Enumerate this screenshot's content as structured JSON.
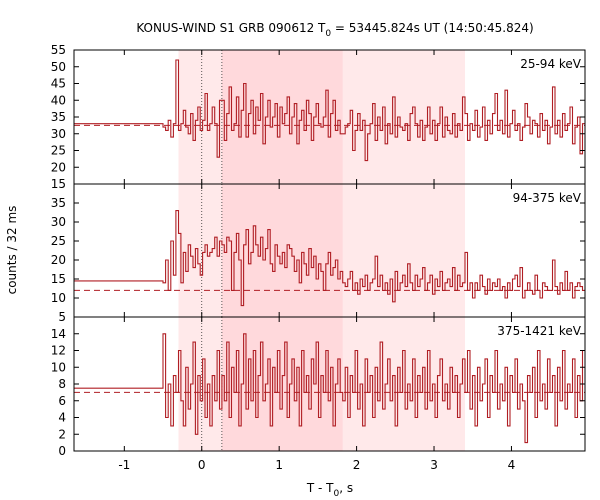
{
  "chart_data": {
    "type": "line",
    "title_prefix": "KONUS-WIND S1 GRB 090612 T",
    "title_sub": "0",
    "title_suffix": " = 53445.824s UT (14:50:45.824)",
    "xlabel_prefix": "T - T",
    "xlabel_sub": "0",
    "xlabel_suffix": ", s",
    "ylabel": "counts / 32 ms",
    "xlim": [
      -1.65,
      4.95
    ],
    "x_ticks": [
      -1,
      0,
      1,
      2,
      3,
      4
    ],
    "x_tick_labels": [
      "-1",
      "0",
      "1",
      "2",
      "3",
      "4"
    ],
    "bin_width": 0.032,
    "pre_trigger_end": -0.5,
    "shaded_intervals": [
      {
        "start": -0.3,
        "end": 3.4,
        "color": "#ffe9ea"
      },
      {
        "start": 0.26,
        "end": 1.82,
        "color": "#ffd9dc"
      }
    ],
    "dotted_lines": [
      0,
      0.26
    ],
    "line_color": "#b01e24",
    "panels": [
      {
        "band": "25-94 keV",
        "ylim": [
          15,
          55
        ],
        "y_ticks": [
          15,
          20,
          25,
          30,
          35,
          40,
          45,
          50,
          55
        ],
        "background": 32.5,
        "pre_level": 33,
        "series": [
          {
            "from": -0.5,
            "to": -0.3,
            "values": [
              32,
              31,
              34,
              29,
              33,
              52
            ]
          },
          {
            "from": -0.3,
            "to": 0.26,
            "values": [
              31,
              33,
              37,
              32,
              30,
              36,
              28,
              34,
              38,
              31,
              34,
              42,
              31,
              33,
              38,
              33,
              23,
              40
            ]
          },
          {
            "from": 0.26,
            "to": 1.82,
            "values": [
              40,
              28,
              36,
              44,
              31,
              33,
              41,
              29,
              37,
              45,
              29,
              36,
              40,
              30,
              38,
              34,
              42,
              27,
              35,
              40,
              32,
              35,
              39,
              29,
              38,
              33,
              36,
              41,
              30,
              35,
              39,
              27,
              34,
              37,
              31,
              40,
              36,
              28,
              35,
              39,
              33,
              32,
              35,
              43,
              29,
              36,
              40,
              31,
              34,
              30
            ]
          },
          {
            "from": 1.82,
            "to": 3.4,
            "values": [
              30,
              32,
              33,
              37,
              25,
              31,
              36,
              31,
              34,
              22,
              30,
              33,
              39,
              28,
              35,
              31,
              38,
              27,
              33,
              30,
              41,
              29,
              35,
              32,
              31,
              33,
              28,
              36,
              38,
              33,
              29,
              34,
              28,
              32,
              38,
              30,
              34,
              28,
              33,
              38,
              29,
              35,
              31,
              30,
              36,
              29,
              33,
              31,
              41
            ]
          },
          {
            "from": 3.4,
            "to": 4.95,
            "values": [
              36,
              28,
              33,
              31,
              37,
              29,
              32,
              38,
              28,
              34,
              30,
              36,
              42,
              31,
              34,
              30,
              43,
              29,
              33,
              37,
              31,
              33,
              28,
              32,
              39,
              35,
              30,
              34,
              33,
              29,
              36,
              31,
              34,
              27,
              32,
              44,
              30,
              34,
              29,
              36,
              31,
              33,
              38,
              27,
              32,
              35,
              24,
              33
            ]
          }
        ]
      },
      {
        "band": "94-375 keV",
        "ylim": [
          5,
          40
        ],
        "y_ticks": [
          5,
          10,
          15,
          20,
          25,
          30,
          35
        ],
        "background": 12,
        "pre_level": 14.5,
        "series": [
          {
            "from": -0.5,
            "to": -0.3,
            "values": [
              14,
              20,
              12,
              25,
              16,
              33
            ]
          },
          {
            "from": -0.3,
            "to": 0.26,
            "values": [
              27,
              14,
              22,
              17,
              24,
              21,
              18,
              23,
              19,
              16,
              22,
              24,
              21,
              22,
              23,
              26,
              21,
              25
            ]
          },
          {
            "from": 0.26,
            "to": 1.82,
            "values": [
              24,
              22,
              26,
              25,
              12,
              22,
              27,
              20,
              8,
              24,
              28,
              19,
              22,
              29,
              24,
              21,
              26,
              20,
              23,
              28,
              19,
              17,
              24,
              21,
              19,
              22,
              18,
              24,
              23,
              21,
              17,
              20,
              14,
              22,
              19,
              16,
              23,
              18,
              21,
              15,
              19,
              17,
              12,
              19,
              22,
              16,
              18,
              20,
              15,
              17
            ]
          },
          {
            "from": 1.82,
            "to": 3.4,
            "values": [
              14,
              13,
              15,
              17,
              12,
              14,
              11,
              15,
              13,
              16,
              12,
              14,
              15,
              21,
              13,
              16,
              12,
              14,
              11,
              15,
              9,
              17,
              12,
              14,
              16,
              13,
              19,
              14,
              12,
              16,
              13,
              15,
              18,
              12,
              14,
              16,
              11,
              15,
              13,
              17,
              12,
              14,
              15,
              13,
              18,
              12,
              16,
              13,
              14
            ]
          },
          {
            "from": 3.4,
            "to": 4.95,
            "values": [
              22,
              12,
              14,
              10,
              14,
              12,
              16,
              13,
              11,
              15,
              12,
              14,
              13,
              15,
              12,
              13,
              10,
              14,
              12,
              15,
              16,
              13,
              18,
              10,
              12,
              14,
              12,
              11,
              16,
              12,
              10,
              14,
              13,
              12,
              12,
              20,
              13,
              11,
              14,
              12,
              17,
              12,
              14,
              10,
              13,
              14,
              13,
              12
            ]
          }
        ]
      },
      {
        "band": "375-1421 keV",
        "ylim": [
          0,
          16
        ],
        "y_ticks": [
          0,
          2,
          4,
          6,
          8,
          10,
          12,
          14
        ],
        "background": 7,
        "pre_level": 7.5,
        "series": [
          {
            "from": -0.5,
            "to": -0.3,
            "values": [
              14,
              4,
              8,
              3,
              9,
              7
            ]
          },
          {
            "from": -0.3,
            "to": 0.26,
            "values": [
              12,
              6,
              3,
              10,
              5,
              8,
              13,
              2,
              9,
              6,
              11,
              4,
              8,
              3,
              9,
              6,
              12,
              5
            ]
          },
          {
            "from": 0.26,
            "to": 1.82,
            "values": [
              9,
              6,
              13,
              4,
              10,
              7,
              12,
              3,
              8,
              14,
              5,
              11,
              6,
              12,
              4,
              9,
              13,
              6,
              8,
              11,
              3,
              10,
              7,
              12,
              5,
              9,
              13,
              4,
              8,
              11,
              6,
              10,
              3,
              12,
              7,
              9,
              5,
              11,
              8,
              13,
              4,
              9,
              7,
              12,
              6,
              10,
              3,
              8,
              11,
              7
            ]
          },
          {
            "from": 1.82,
            "to": 3.4,
            "values": [
              6,
              10,
              4,
              9,
              7,
              12,
              5,
              8,
              3,
              11,
              7,
              9,
              4,
              10,
              6,
              13,
              5,
              8,
              11,
              6,
              9,
              3,
              10,
              7,
              12,
              5,
              8,
              6,
              11,
              4,
              9,
              7,
              10,
              5,
              12,
              6,
              8,
              4,
              9,
              11,
              6,
              8,
              5,
              10,
              7,
              9,
              4,
              8,
              11
            ]
          },
          {
            "from": 3.4,
            "to": 4.95,
            "values": [
              7,
              12,
              5,
              9,
              3,
              10,
              6,
              8,
              11,
              4,
              9,
              7,
              12,
              5,
              8,
              6,
              10,
              3,
              9,
              7,
              11,
              5,
              8,
              6,
              1,
              9,
              7,
              10,
              4,
              12,
              6,
              8,
              5,
              11,
              7,
              9,
              3,
              10,
              6,
              12,
              5,
              8,
              7,
              11,
              4,
              9,
              6,
              12
            ]
          }
        ]
      }
    ]
  }
}
